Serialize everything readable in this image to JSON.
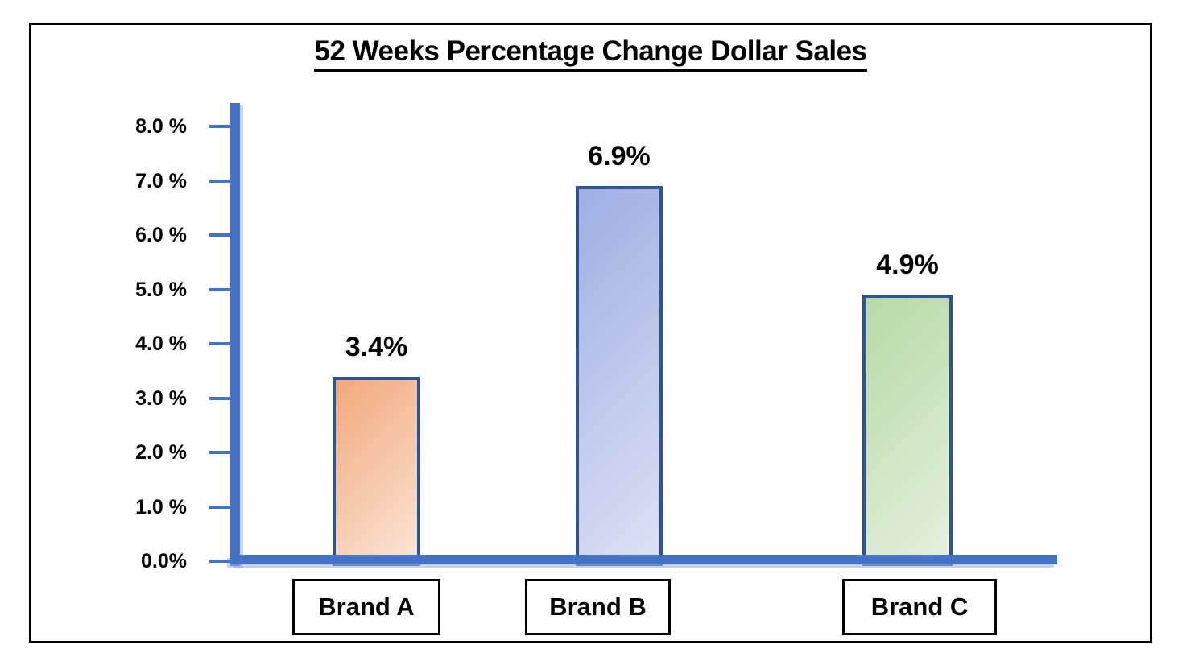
{
  "chart_data": {
    "type": "bar",
    "title": "52 Weeks Percentage Change Dollar Sales",
    "categories": [
      "Brand A",
      "Brand B",
      "Brand C"
    ],
    "values": [
      3.4,
      6.9,
      4.9
    ],
    "value_labels": [
      "3.4%",
      "6.9%",
      "4.9%"
    ],
    "ylabel": "",
    "xlabel": "",
    "ylim": [
      0,
      8.4
    ],
    "yticks": [
      {
        "value": 8,
        "label": "8.0 %"
      },
      {
        "value": 7,
        "label": "7.0 %"
      },
      {
        "value": 6,
        "label": "6.0 %"
      },
      {
        "value": 5,
        "label": "5.0 %"
      },
      {
        "value": 4,
        "label": "4.0 %"
      },
      {
        "value": 3,
        "label": "3.0 %"
      },
      {
        "value": 2,
        "label": "2.0 %"
      },
      {
        "value": 1,
        "label": "1.0 %"
      },
      {
        "value": 0,
        "label": "0.0%"
      }
    ],
    "grid": false,
    "legend": false,
    "colors": {
      "axis": "#4472C4",
      "bar_border": "#2F5496",
      "bar_gradients": [
        {
          "from": "#F2A87B",
          "to": "#FBE6D7"
        },
        {
          "from": "#9FAEE3",
          "to": "#DCE2F4"
        },
        {
          "from": "#B7D9A6",
          "to": "#E5F1DE"
        }
      ],
      "text": "#000000",
      "frame_border": "#000000",
      "background": "#FFFFFF"
    }
  }
}
